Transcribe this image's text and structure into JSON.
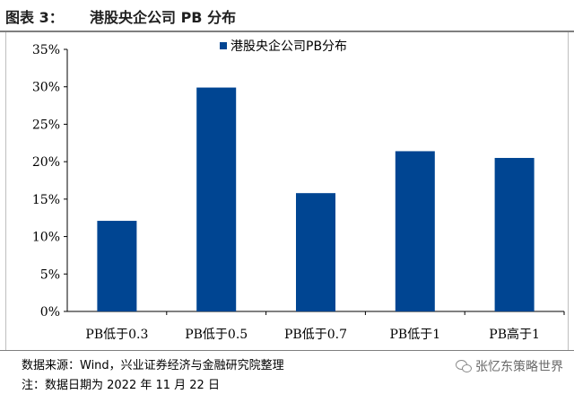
{
  "figure": {
    "label": "图表 3：",
    "title": "港股央企公司 PB 分布"
  },
  "chart_data": {
    "type": "bar",
    "categories": [
      "PB低于0.3",
      "PB低于0.5",
      "PB低于0.7",
      "PB低于1",
      "PB高于1"
    ],
    "series": [
      {
        "name": "港股央企公司PB分布",
        "values": [
          12.1,
          29.9,
          15.8,
          21.4,
          20.5
        ],
        "color": "#004592"
      }
    ],
    "ylim": [
      0,
      35
    ],
    "yticks": [
      "0%",
      "5%",
      "10%",
      "15%",
      "20%",
      "25%",
      "30%",
      "35%"
    ],
    "ytick_values": [
      0,
      5,
      10,
      15,
      20,
      25,
      30,
      35
    ],
    "legend": "top-center",
    "grid": false
  },
  "footer": {
    "source": "数据来源：Wind，兴业证券经济与金融研究院整理",
    "note": "注：数据日期为 2022 年 11 月 22 日"
  },
  "watermark": {
    "icon": "wechat-icon",
    "text": "张忆东策略世界"
  }
}
